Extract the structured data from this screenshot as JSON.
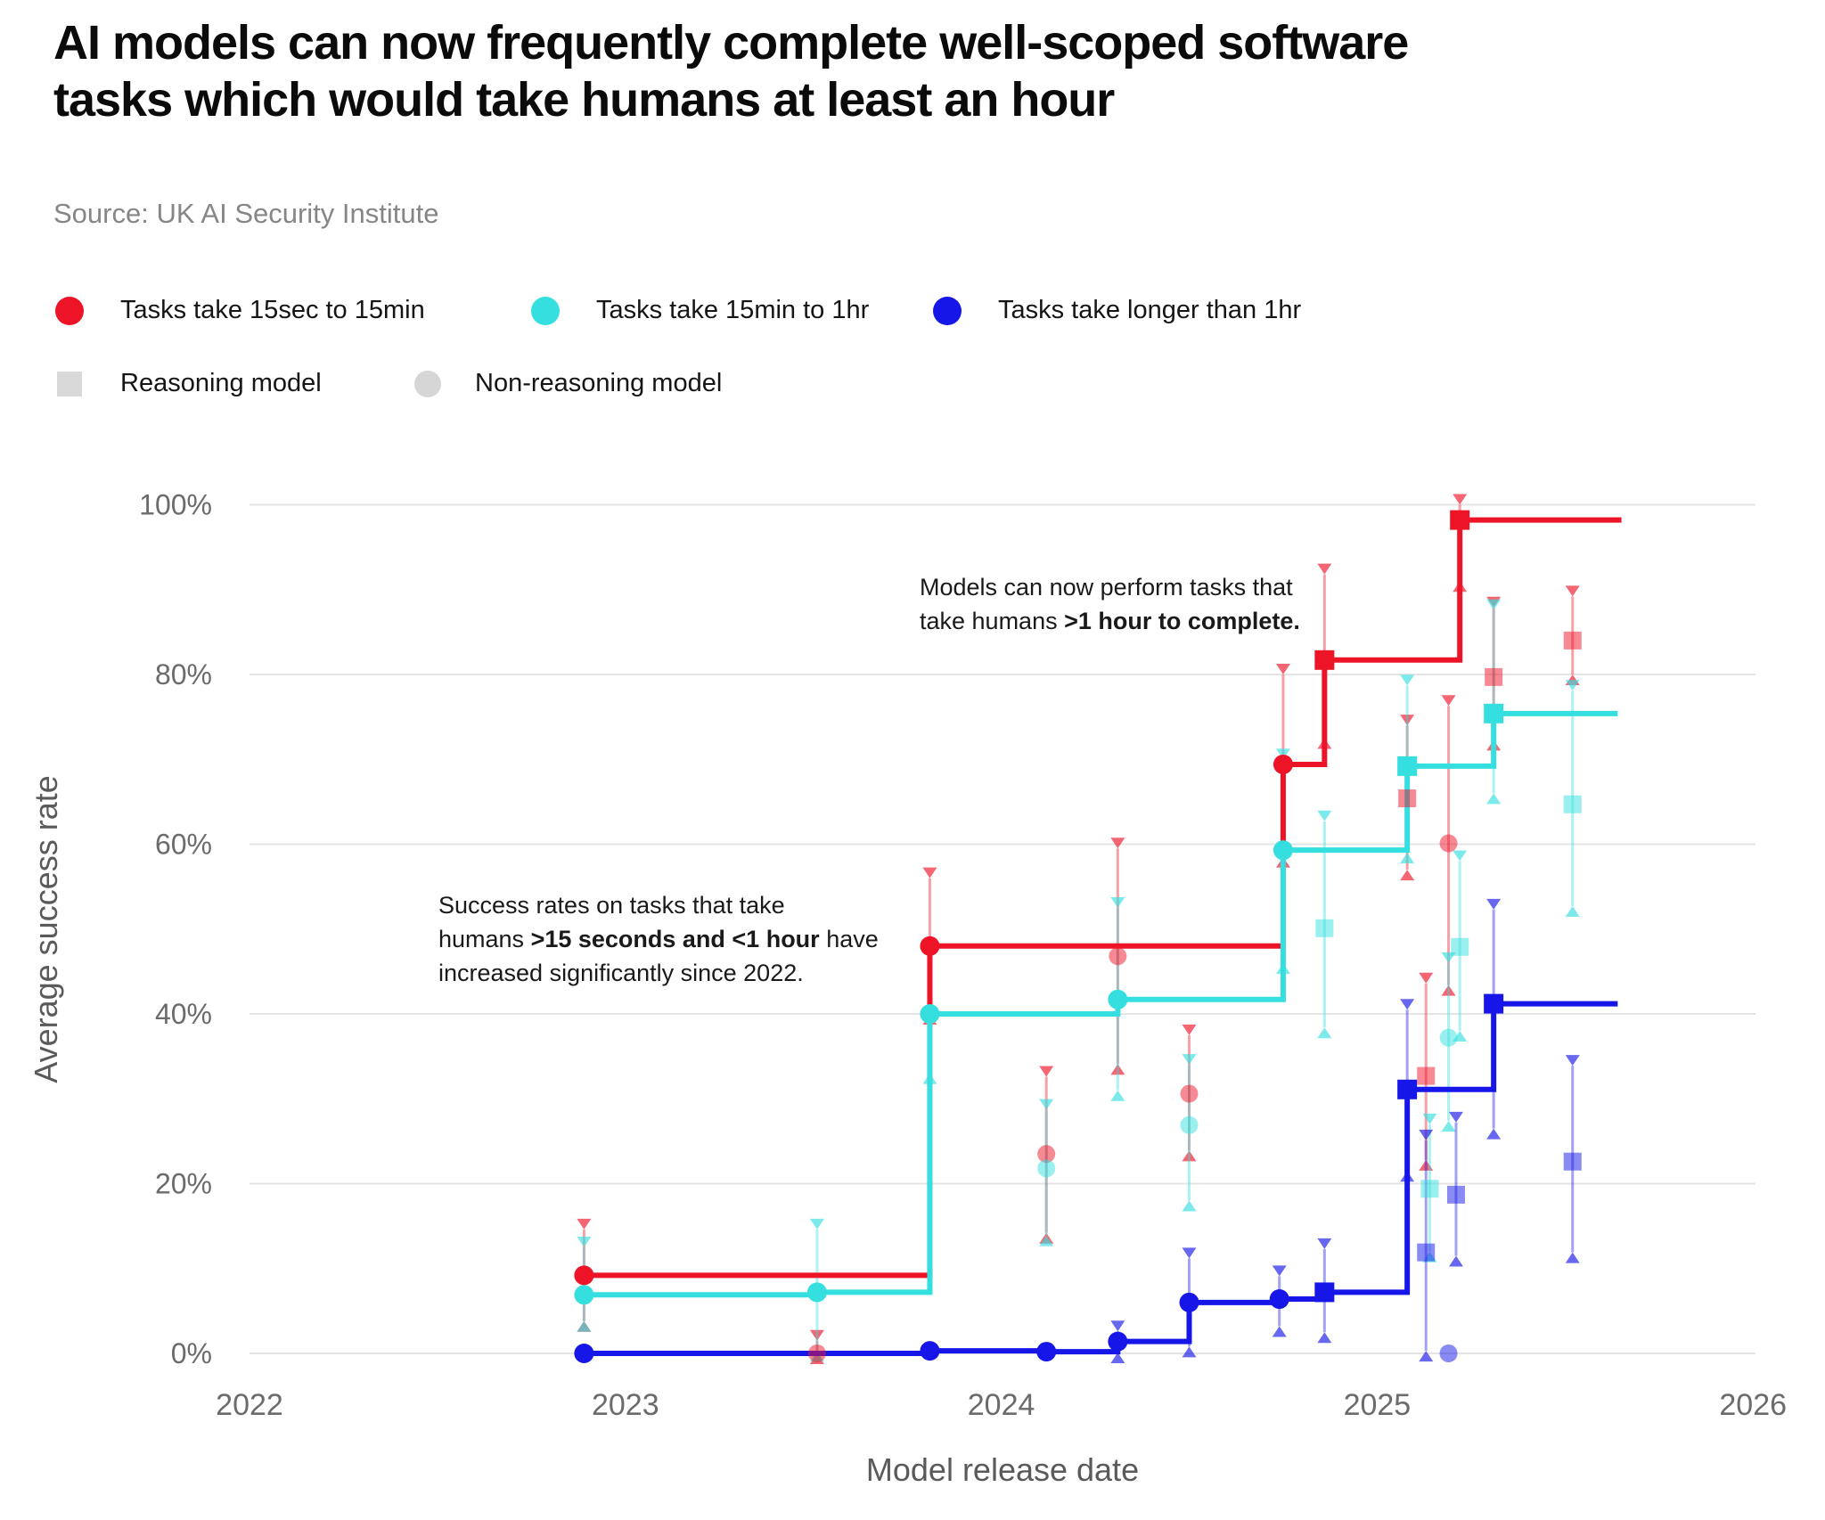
{
  "header": {
    "title_line1": "AI models can now frequently complete well-scoped software",
    "title_line2": "tasks which would take humans at least an hour",
    "source": "Source: UK AI Security Institute"
  },
  "legend": {
    "duration_items": [
      {
        "label": "Tasks take 15sec to 15min",
        "color": "#ee1428"
      },
      {
        "label": "Tasks take 15min to 1hr",
        "color": "#35dfdf"
      },
      {
        "label": "Tasks take longer than 1hr",
        "color": "#1616e8"
      }
    ],
    "marker_items": [
      {
        "label": "Reasoning model",
        "shape": "square",
        "color": "#d9d9d9"
      },
      {
        "label": "Non-reasoning model",
        "shape": "circle",
        "color": "#d6d6d6"
      }
    ]
  },
  "annotations": [
    {
      "lines": [
        [
          {
            "t": "Models can now perform tasks that"
          }
        ],
        [
          {
            "t": "take humans "
          },
          {
            "t": ">1 hour to complete.",
            "b": true
          }
        ]
      ]
    },
    {
      "lines": [
        [
          {
            "t": "Success rates on tasks that take"
          }
        ],
        [
          {
            "t": "humans "
          },
          {
            "t": ">15 seconds and <1 hour",
            "b": true
          },
          {
            "t": " have"
          }
        ],
        [
          {
            "t": "increased significantly since 2022."
          }
        ]
      ]
    }
  ],
  "chart_data": {
    "type": "step-scatter",
    "xlabel": "Model release date",
    "ylabel": "Average success rate",
    "x_ticks": [
      2022,
      2023,
      2024,
      2025,
      2026
    ],
    "y_ticks": [
      {
        "value": 0,
        "label": "0%"
      },
      {
        "value": 20,
        "label": "20%"
      },
      {
        "value": 40,
        "label": "40%"
      },
      {
        "value": 60,
        "label": "60%"
      },
      {
        "value": 80,
        "label": "80%"
      },
      {
        "value": 100,
        "label": "100%"
      }
    ],
    "x_domain": [
      2022,
      2026.01
    ],
    "y_domain": [
      0,
      100
    ],
    "grid": true,
    "series": [
      {
        "id": "red",
        "name": "Tasks take 15sec to 15min",
        "color": "#ee1428",
        "end_date": 2025.65,
        "frontier": [
          {
            "date": 2022.89,
            "value": 9.2,
            "marker": "circle",
            "err_hi": 14.6,
            "err_lo": 3.8
          },
          {
            "date": 2023.81,
            "value": 48.0,
            "marker": "circle",
            "err_hi": 56.0,
            "err_lo": 40.0
          },
          {
            "date": 2024.75,
            "value": 69.4,
            "marker": "circle",
            "err_hi": 80.0,
            "err_lo": 58.5
          },
          {
            "date": 2024.86,
            "value": 81.7,
            "marker": "square",
            "err_hi": 91.8,
            "err_lo": 72.5
          },
          {
            "date": 2025.22,
            "value": 98.2,
            "marker": "square",
            "err_hi": 100.0,
            "err_lo": 91.0
          }
        ],
        "others": [
          {
            "date": 2023.51,
            "value": 0.0,
            "marker": "circle",
            "err_hi": 1.5,
            "err_lo": 0.0
          },
          {
            "date": 2024.12,
            "value": 23.5,
            "marker": "circle",
            "err_hi": 32.6,
            "err_lo": 14.2
          },
          {
            "date": 2024.31,
            "value": 46.8,
            "marker": "circle",
            "err_hi": 59.5,
            "err_lo": 34.1
          },
          {
            "date": 2024.5,
            "value": 30.6,
            "marker": "circle",
            "err_hi": 37.5,
            "err_lo": 23.9
          },
          {
            "date": 2025.08,
            "value": 65.4,
            "marker": "square",
            "err_hi": 74.0,
            "err_lo": 57.0
          },
          {
            "date": 2025.13,
            "value": 32.7,
            "marker": "square",
            "err_hi": 43.6,
            "err_lo": 22.8
          },
          {
            "date": 2025.19,
            "value": 60.1,
            "marker": "circle",
            "err_hi": 76.3,
            "err_lo": 43.4
          },
          {
            "date": 2025.31,
            "value": 79.7,
            "marker": "square",
            "err_hi": 87.9,
            "err_lo": 72.3
          },
          {
            "date": 2025.52,
            "value": 84.0,
            "marker": "square",
            "err_hi": 89.2,
            "err_lo": 80.0
          }
        ]
      },
      {
        "id": "cyan",
        "name": "Tasks take 15min to 1hr",
        "color": "#35dfdf",
        "end_date": 2025.64,
        "frontier": [
          {
            "date": 2022.89,
            "value": 6.9,
            "marker": "circle",
            "err_hi": 12.5,
            "err_lo": 3.8
          },
          {
            "date": 2023.51,
            "value": 7.2,
            "marker": "circle",
            "err_hi": 14.6,
            "err_lo": 0.3
          },
          {
            "date": 2023.81,
            "value": 40.0,
            "marker": "circle",
            "err_hi": 47.0,
            "err_lo": 33.0
          },
          {
            "date": 2024.31,
            "value": 41.7,
            "marker": "circle",
            "err_hi": 52.5,
            "err_lo": 31.0
          },
          {
            "date": 2024.75,
            "value": 59.3,
            "marker": "circle",
            "err_hi": 70.0,
            "err_lo": 46.0
          },
          {
            "date": 2025.08,
            "value": 69.2,
            "marker": "square",
            "err_hi": 78.7,
            "err_lo": 59.0
          },
          {
            "date": 2025.31,
            "value": 75.4,
            "marker": "square",
            "err_hi": 87.6,
            "err_lo": 66.0
          }
        ],
        "others": [
          {
            "date": 2024.12,
            "value": 21.8,
            "marker": "circle",
            "err_hi": 28.7,
            "err_lo": 13.9
          },
          {
            "date": 2024.5,
            "value": 26.9,
            "marker": "circle",
            "err_hi": 34.0,
            "err_lo": 18.0
          },
          {
            "date": 2024.86,
            "value": 50.1,
            "marker": "square",
            "err_hi": 62.7,
            "err_lo": 38.4
          },
          {
            "date": 2025.14,
            "value": 19.4,
            "marker": "square",
            "err_hi": 27.0,
            "err_lo": 12.0
          },
          {
            "date": 2025.19,
            "value": 37.2,
            "marker": "circle",
            "err_hi": 46.0,
            "err_lo": 27.4
          },
          {
            "date": 2025.22,
            "value": 47.9,
            "marker": "square",
            "err_hi": 58.0,
            "err_lo": 38.0
          },
          {
            "date": 2025.52,
            "value": 64.7,
            "marker": "square",
            "err_hi": 78.1,
            "err_lo": 52.7
          }
        ]
      },
      {
        "id": "blue",
        "name": "Tasks take longer than 1hr",
        "color": "#1616e8",
        "end_date": 2025.64,
        "frontier": [
          {
            "date": 2022.89,
            "value": 0.0,
            "marker": "circle",
            "err_hi": null,
            "err_lo": null
          },
          {
            "date": 2023.81,
            "value": 0.3,
            "marker": "circle",
            "err_hi": null,
            "err_lo": null
          },
          {
            "date": 2024.12,
            "value": 0.2,
            "marker": "circle",
            "err_hi": null,
            "err_lo": null
          },
          {
            "date": 2024.31,
            "value": 1.4,
            "marker": "circle",
            "err_hi": 2.6,
            "err_lo": 0.1
          },
          {
            "date": 2024.5,
            "value": 6.0,
            "marker": "circle",
            "err_hi": 11.2,
            "err_lo": 0.8
          },
          {
            "date": 2024.74,
            "value": 6.4,
            "marker": "circle",
            "err_hi": 9.1,
            "err_lo": 3.2
          },
          {
            "date": 2024.86,
            "value": 7.2,
            "marker": "square",
            "err_hi": 12.3,
            "err_lo": 2.5
          },
          {
            "date": 2025.08,
            "value": 31.1,
            "marker": "square",
            "err_hi": 40.5,
            "err_lo": 21.5
          },
          {
            "date": 2025.31,
            "value": 41.2,
            "marker": "square",
            "err_hi": 52.3,
            "err_lo": 26.5
          }
        ],
        "others": [
          {
            "date": 2025.13,
            "value": 11.9,
            "marker": "square",
            "err_hi": 25.1,
            "err_lo": 0.3
          },
          {
            "date": 2025.19,
            "value": 0.0,
            "marker": "circle",
            "err_hi": null,
            "err_lo": null
          },
          {
            "date": 2025.21,
            "value": 18.7,
            "marker": "square",
            "err_hi": 27.2,
            "err_lo": 11.5
          },
          {
            "date": 2025.52,
            "value": 22.6,
            "marker": "square",
            "err_hi": 33.9,
            "err_lo": 11.9
          }
        ]
      }
    ]
  }
}
